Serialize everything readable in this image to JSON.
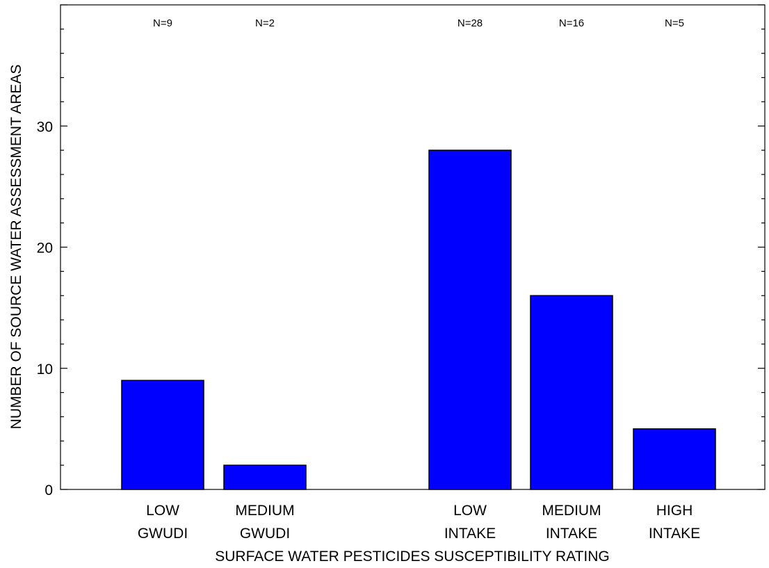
{
  "chart_data": {
    "type": "bar",
    "title": "",
    "xlabel": "SURFACE WATER PESTICIDES SUSCEPTIBILITY RATING",
    "ylabel": "NUMBER OF SOURCE WATER ASSESSMENT AREAS",
    "ylim": [
      0,
      40
    ],
    "yticks": [
      "0",
      "10",
      "20",
      "30"
    ],
    "categories": [
      {
        "line1": "LOW",
        "line2": "GWUDI"
      },
      {
        "line1": "MEDIUM",
        "line2": "GWUDI"
      },
      {
        "line1": "LOW",
        "line2": "INTAKE"
      },
      {
        "line1": "MEDIUM",
        "line2": "INTAKE"
      },
      {
        "line1": "HIGH",
        "line2": "INTAKE"
      }
    ],
    "values": [
      9,
      2,
      28,
      16,
      5
    ],
    "n_labels": [
      "N=9",
      "N=2",
      "N=28",
      "N=16",
      "N=5"
    ],
    "bar_color": "#0000ff",
    "grid": false,
    "legend": "none"
  }
}
